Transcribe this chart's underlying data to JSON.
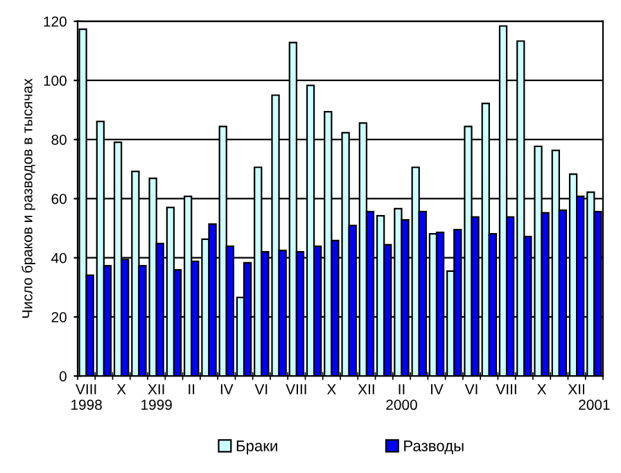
{
  "chart_data": {
    "type": "bar",
    "ylabel": "Число браков и разводов в тысячах",
    "categories": [
      "VIII\n1998",
      null,
      "X",
      null,
      "XII\n1999",
      null,
      "II",
      null,
      "IV",
      null,
      "VI",
      null,
      "VIII",
      null,
      "X",
      null,
      "XII",
      null,
      "II\n2000",
      null,
      "IV",
      null,
      "VI",
      null,
      "VIII",
      null,
      "X",
      null,
      "XII",
      "\n2001"
    ],
    "series": [
      {
        "name": "Браки",
        "color": "#ccffff",
        "values": [
          117.3,
          86.1,
          79.1,
          69.2,
          66.9,
          57.0,
          60.8,
          46.3,
          84.4,
          26.6,
          70.6,
          95.0,
          112.8,
          98.3,
          89.4,
          82.3,
          85.6,
          54.2,
          56.6,
          70.6,
          48.1,
          35.5,
          84.4,
          92.2,
          118.4,
          113.3,
          77.7,
          76.3,
          68.3,
          62.2
        ]
      },
      {
        "name": "Разводы",
        "color": "#0000ff",
        "values": [
          34.1,
          37.3,
          39.4,
          37.3,
          44.8,
          35.9,
          38.8,
          51.4,
          43.9,
          38.3,
          42.0,
          42.5,
          42.0,
          43.9,
          45.8,
          50.9,
          55.6,
          44.4,
          52.8,
          55.6,
          48.6,
          49.5,
          53.8,
          48.1,
          53.8,
          47.2,
          55.2,
          56.1,
          60.8,
          55.6
        ]
      }
    ],
    "ylim": [
      0,
      120
    ],
    "yticks": [
      0,
      20,
      40,
      60,
      80,
      100,
      120
    ],
    "grid": "y",
    "legend": "bottom"
  }
}
